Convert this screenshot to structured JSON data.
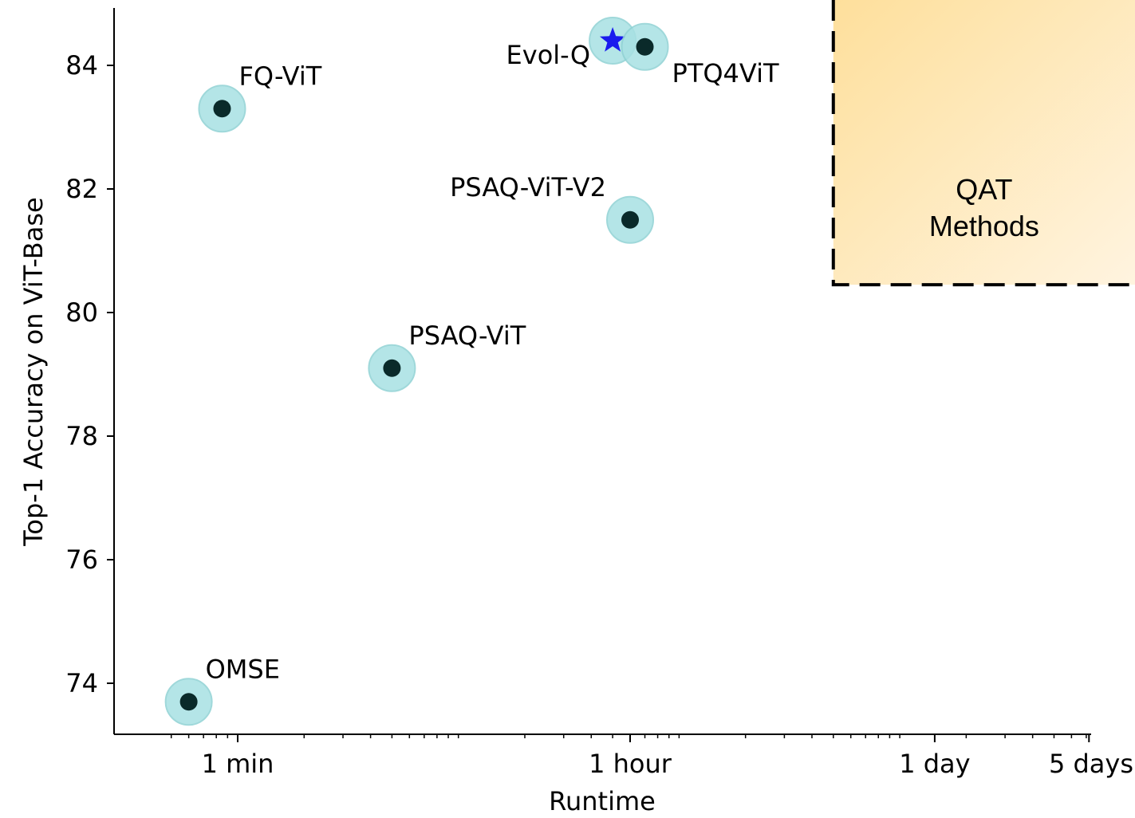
{
  "chart_data": {
    "type": "scatter",
    "title": "",
    "xlabel": "Runtime",
    "ylabel": "Top-1 Accuracy on ViT-Base",
    "x_scale": "log",
    "x_unit": "minutes",
    "xlim": [
      0.48,
      7300
    ],
    "ylim": [
      73.2,
      84.9
    ],
    "x_ticks": [
      {
        "value": 1,
        "label": "1 min"
      },
      {
        "value": 60,
        "label": "1 hour"
      },
      {
        "value": 1440,
        "label": "1 day"
      },
      {
        "value": 7200,
        "label": "5 days"
      }
    ],
    "y_ticks": [
      {
        "value": 74,
        "label": "74"
      },
      {
        "value": 76,
        "label": "76"
      },
      {
        "value": 78,
        "label": "78"
      },
      {
        "value": 80,
        "label": "80"
      },
      {
        "value": 82,
        "label": "82"
      },
      {
        "value": 84,
        "label": "84"
      }
    ],
    "grid": false,
    "points": [
      {
        "name": "OMSE",
        "x": 0.6,
        "y": 73.7,
        "marker": "circle",
        "label_pos": "above-right"
      },
      {
        "name": "FQ-ViT",
        "x": 0.85,
        "y": 83.3,
        "marker": "circle",
        "label_pos": "above-right"
      },
      {
        "name": "PSAQ-ViT",
        "x": 5.0,
        "y": 79.1,
        "marker": "circle",
        "label_pos": "above-right"
      },
      {
        "name": "PSAQ-ViT-V2",
        "x": 60,
        "y": 81.5,
        "marker": "circle",
        "label_pos": "above-left"
      },
      {
        "name": "Evol-Q",
        "x": 50,
        "y": 84.4,
        "marker": "star",
        "label_pos": "left"
      },
      {
        "name": "PTQ4ViT",
        "x": 70,
        "y": 84.3,
        "marker": "circle",
        "label_pos": "below-right"
      }
    ],
    "region": {
      "label_lines": [
        "QAT",
        "Methods"
      ],
      "x_start": 500,
      "y_start": 80.45
    },
    "colors": {
      "halo_fill": "#a8e1e3",
      "halo_stroke": "#8fd2d4",
      "dot": "#0a2a2a",
      "star": "#1a1aee",
      "region_start": "#fedf9b",
      "region_end": "#fff4e0"
    }
  }
}
